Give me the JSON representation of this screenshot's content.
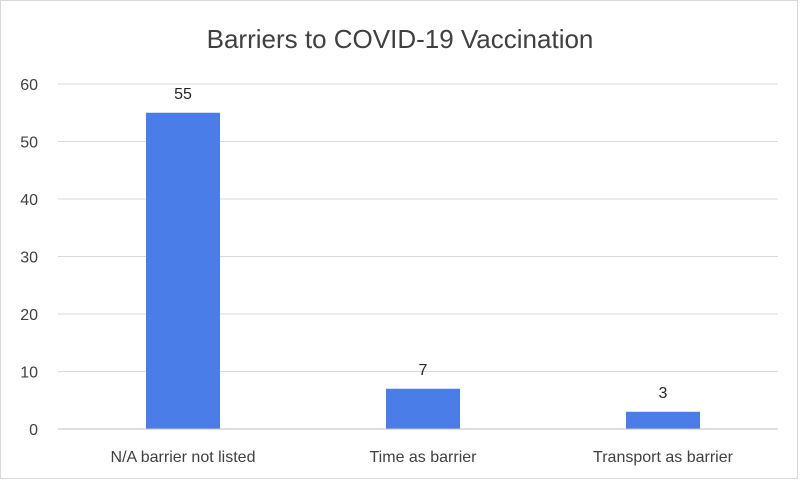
{
  "chart_data": {
    "type": "bar",
    "title": "Barriers to COVID-19 Vaccination",
    "categories": [
      "N/A barrier not listed",
      "Time as barrier",
      "Transport as barrier"
    ],
    "values": [
      55,
      7,
      3
    ],
    "yticks": [
      0,
      10,
      20,
      30,
      40,
      50,
      60
    ],
    "ylim": [
      0,
      60
    ],
    "grid": true,
    "legend": "none",
    "bar_color": "#4a7de8"
  }
}
